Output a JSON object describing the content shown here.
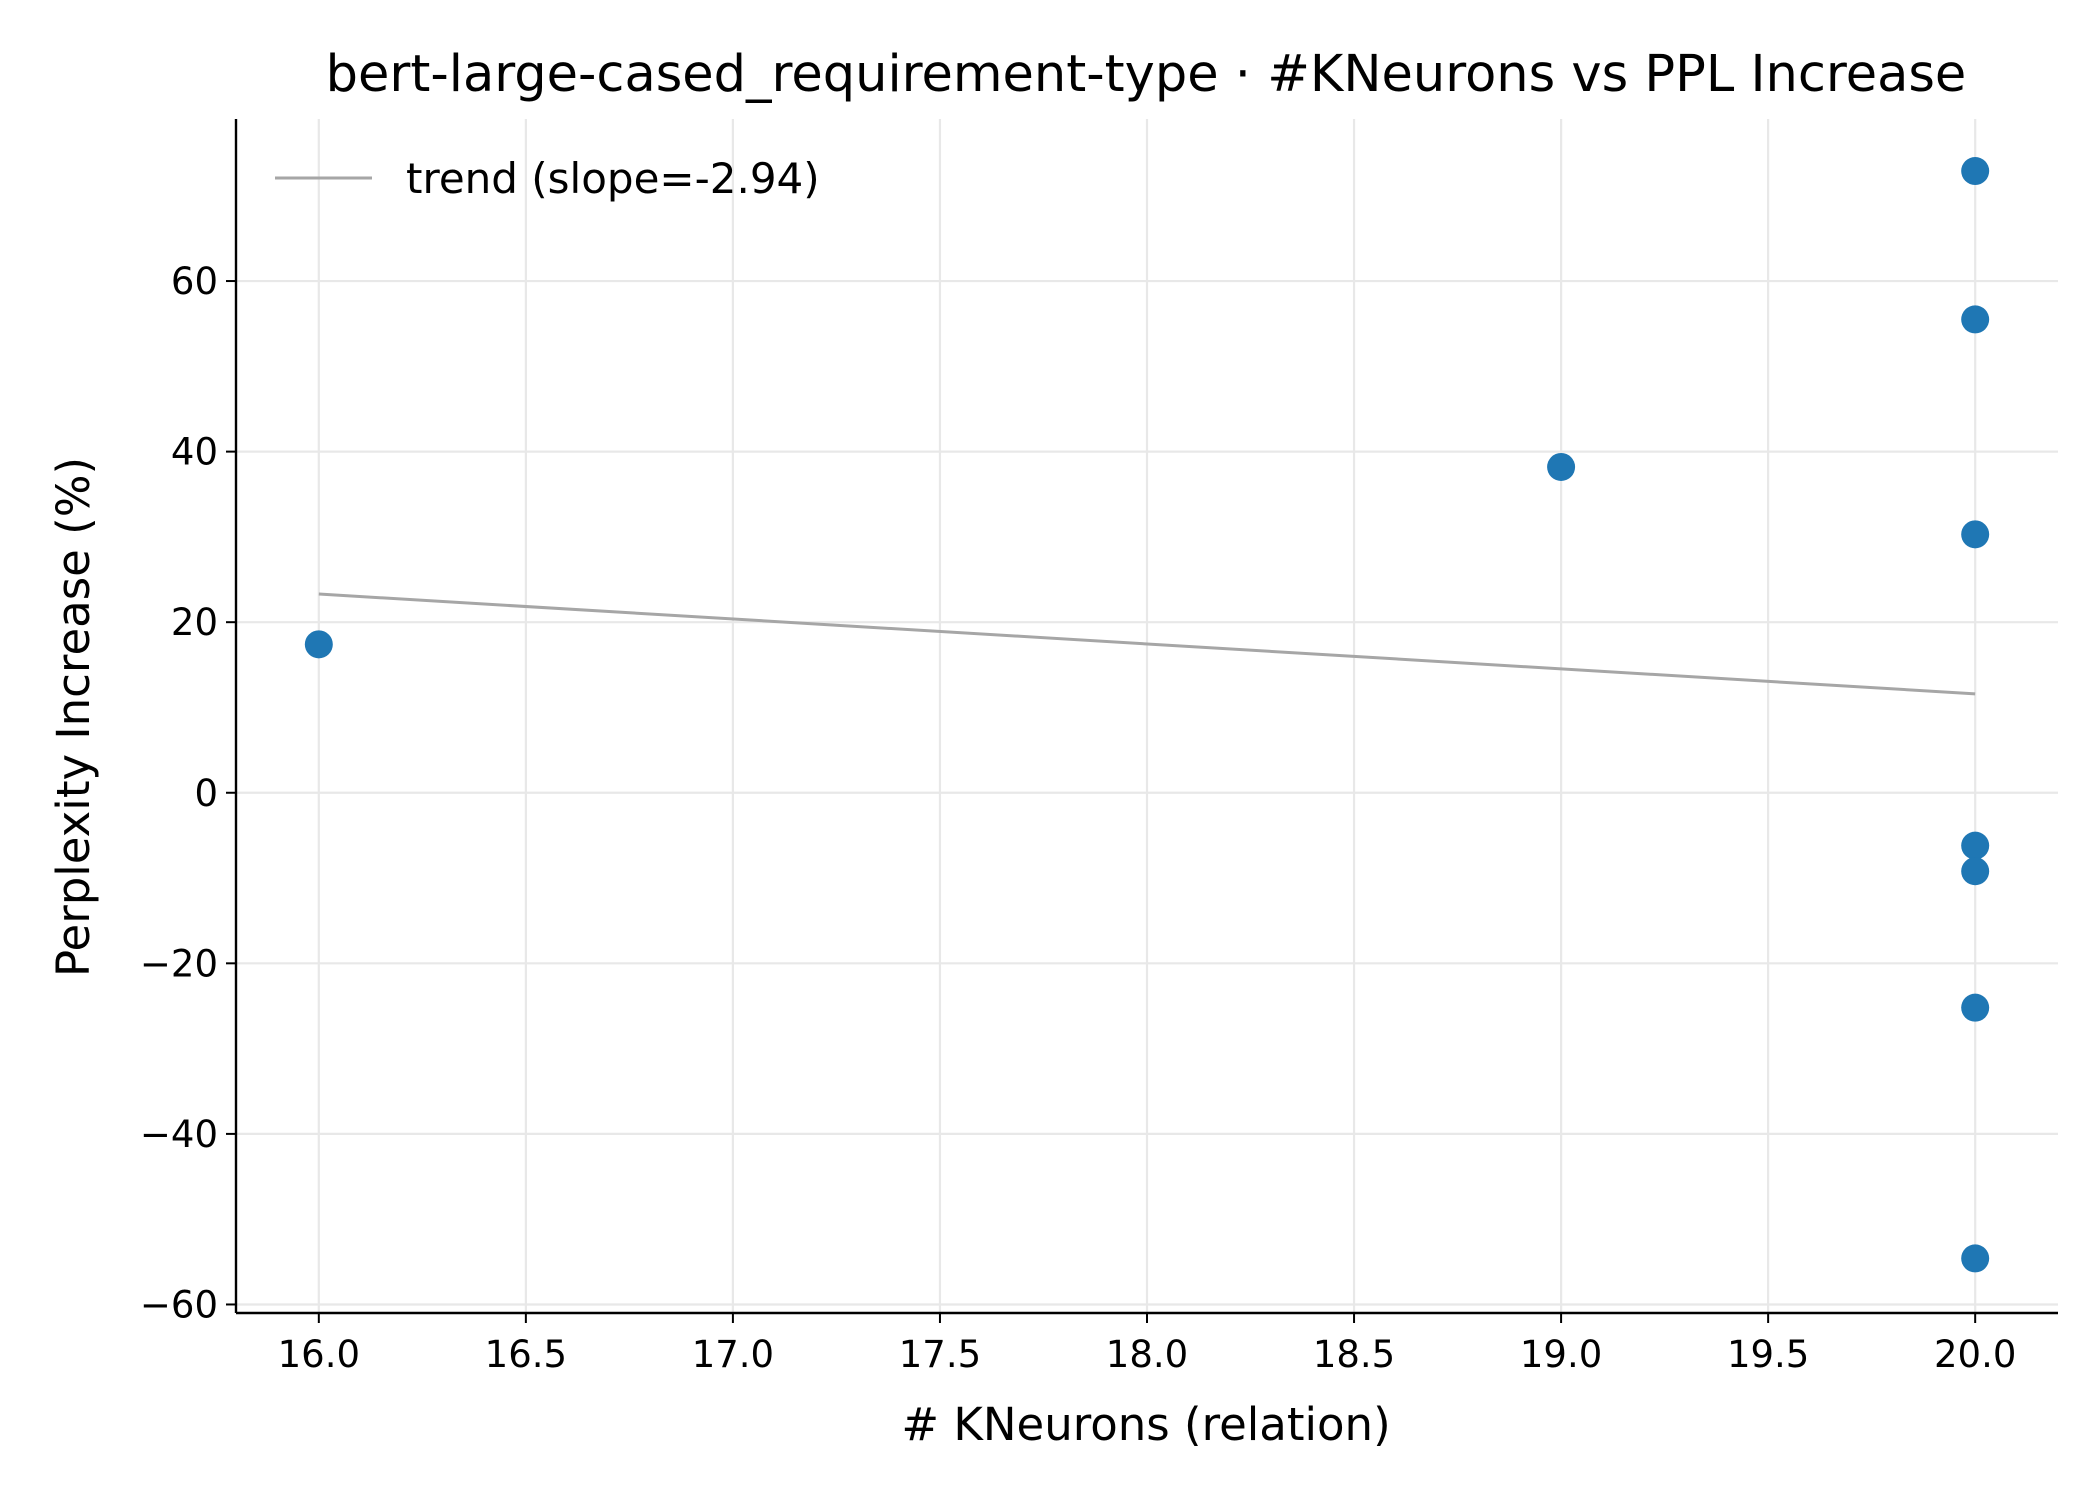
{
  "chart_data": {
    "type": "scatter",
    "title": "bert-large-cased_requirement-type · #KNeurons vs PPL Increase",
    "xlabel": "# KNeurons (relation)",
    "ylabel": "Perplexity Increase (%)",
    "xlim": [
      15.8,
      20.2
    ],
    "ylim": [
      -61,
      79
    ],
    "xticks": [
      16.0,
      16.5,
      17.0,
      17.5,
      18.0,
      18.5,
      19.0,
      19.5,
      20.0
    ],
    "xtick_labels": [
      "16.0",
      "16.5",
      "17.0",
      "17.5",
      "18.0",
      "18.5",
      "19.0",
      "19.5",
      "20.0"
    ],
    "yticks": [
      -60,
      -40,
      -20,
      0,
      20,
      40,
      60
    ],
    "ytick_labels": [
      "−60",
      "−40",
      "−20",
      "0",
      "20",
      "40",
      "60"
    ],
    "grid": true,
    "legend_position": "upper-left",
    "points": [
      {
        "x": 16,
        "y": 17.4
      },
      {
        "x": 19,
        "y": 38.2
      },
      {
        "x": 20,
        "y": 72.9
      },
      {
        "x": 20,
        "y": 55.5
      },
      {
        "x": 20,
        "y": 30.3
      },
      {
        "x": 20,
        "y": -6.2
      },
      {
        "x": 20,
        "y": -9.2
      },
      {
        "x": 20,
        "y": -25.2
      },
      {
        "x": 20,
        "y": -54.6
      }
    ],
    "trend": {
      "label": "trend (slope=-2.94)",
      "x": [
        16,
        20
      ],
      "y": [
        23.3,
        11.6
      ]
    },
    "colors": {
      "points": "#1f77b4",
      "trend": "#a6a6a6",
      "grid": "#e8e8e8",
      "axes": "#000000"
    }
  }
}
